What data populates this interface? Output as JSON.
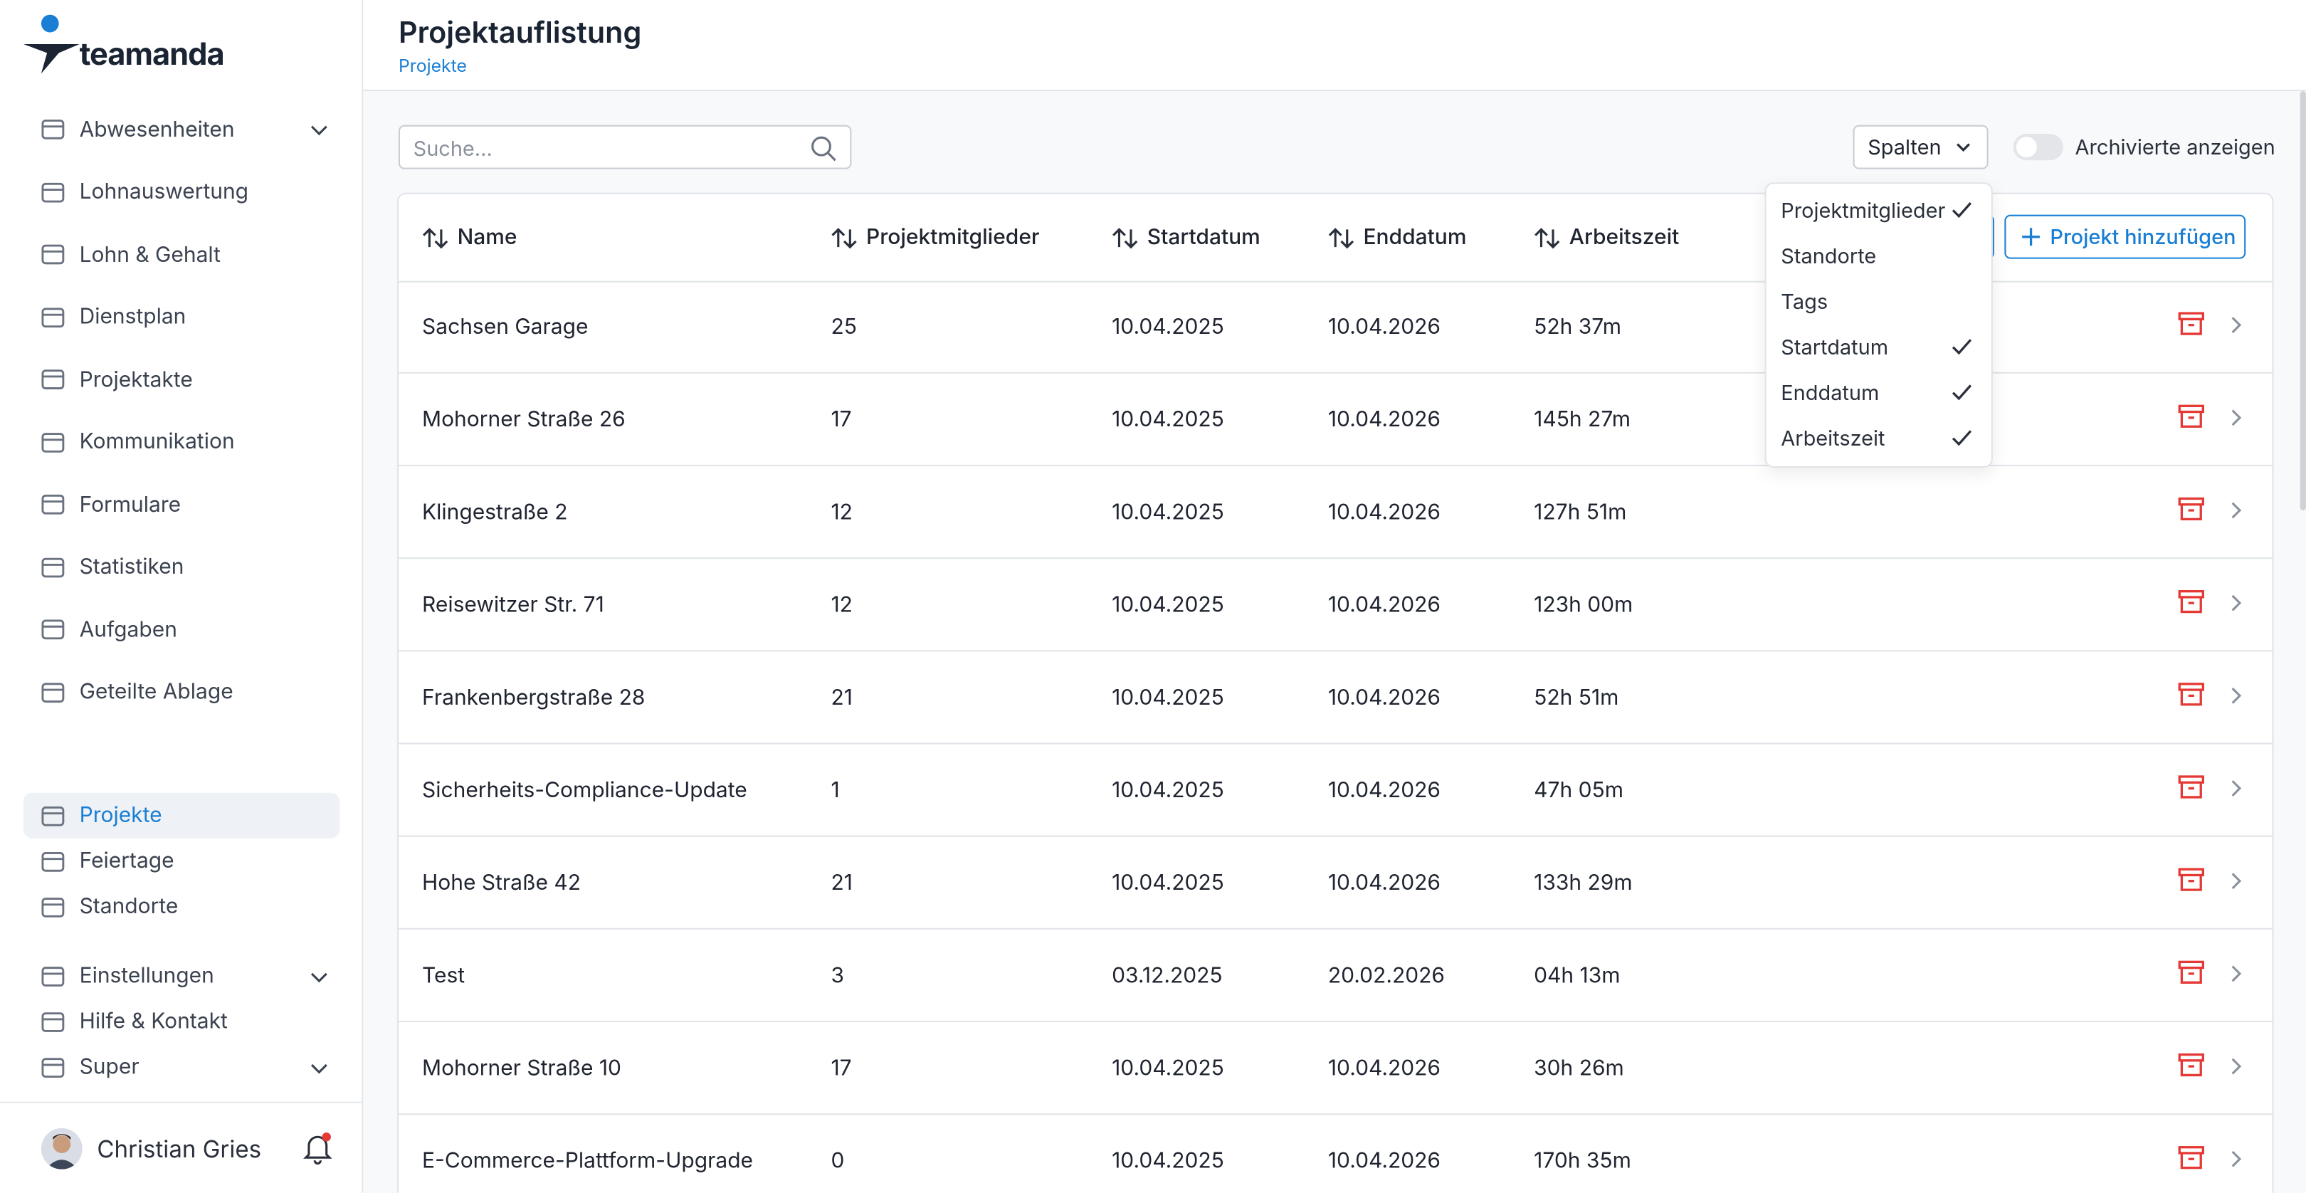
{
  "sidebar": {
    "logo": "teamanda",
    "user": "Christian Gries",
    "nav": [
      {
        "label": "Abwesenheiten",
        "expandable": true
      },
      {
        "label": "Lohnauswertung",
        "expandable": false
      },
      {
        "label": "Lohn & Gehalt",
        "expandable": false
      },
      {
        "label": "Dienstplan",
        "expandable": false
      },
      {
        "label": "Projektakte",
        "expandable": false
      },
      {
        "label": "Kommunikation",
        "expandable": false
      },
      {
        "label": "Formulare",
        "expandable": false
      },
      {
        "label": "Statistiken",
        "expandable": false
      },
      {
        "label": "Aufgaben",
        "expandable": false
      },
      {
        "label": "Geteilte Ablage",
        "expandable": false
      }
    ],
    "bottom_nav": [
      {
        "label": "Projekte",
        "expandable": false,
        "active": true
      },
      {
        "label": "Feiertage",
        "expandable": false,
        "active": false
      },
      {
        "label": "Standorte",
        "expandable": false,
        "active": false
      },
      {
        "label": "Einstellungen",
        "expandable": true,
        "active": false
      },
      {
        "label": "Hilfe & Kontakt",
        "expandable": false,
        "active": false
      },
      {
        "label": "Super",
        "expandable": true,
        "active": false
      }
    ]
  },
  "header": {
    "title": "Projektauflistung",
    "breadcrumb": "Projekte"
  },
  "toolbar": {
    "search_placeholder": "Suche...",
    "columns_button": "Spalten",
    "archived_toggle": "Archivierte anzeigen"
  },
  "column_menu": [
    {
      "label": "Projektmitglieder",
      "checked": true
    },
    {
      "label": "Standorte",
      "checked": false
    },
    {
      "label": "Tags",
      "checked": false
    },
    {
      "label": "Startdatum",
      "checked": true
    },
    {
      "label": "Enddatum",
      "checked": true
    },
    {
      "label": "Arbeitszeit",
      "checked": true
    }
  ],
  "table": {
    "columns": [
      "Name",
      "Projektmitglieder",
      "Startdatum",
      "Enddatum",
      "Arbeitszeit"
    ],
    "add_button": "Projekt hinzufügen",
    "rows": [
      [
        "Sachsen Garage",
        25,
        "10.04.2025",
        "10.04.2026",
        "52h 37m"
      ],
      [
        "Mohorner Straße 26",
        17,
        "10.04.2025",
        "10.04.2026",
        "145h 27m"
      ],
      [
        "Klingestraße 2",
        12,
        "10.04.2025",
        "10.04.2026",
        "127h 51m"
      ],
      [
        "Reisewitzer Str. 71",
        12,
        "10.04.2025",
        "10.04.2026",
        "123h 00m"
      ],
      [
        "Frankenbergstraße 28",
        21,
        "10.04.2025",
        "10.04.2026",
        "52h 51m"
      ],
      [
        "Sicherheits-Compliance-Update",
        1,
        "10.04.2025",
        "10.04.2026",
        "47h 05m"
      ],
      [
        "Hohe Straße 42",
        21,
        "10.04.2025",
        "10.04.2026",
        "133h 29m"
      ],
      [
        "Test",
        3,
        "03.12.2025",
        "20.02.2026",
        "04h 13m"
      ],
      [
        "Mohorner Straße 10",
        17,
        "10.04.2025",
        "10.04.2026",
        "30h 26m"
      ],
      [
        "E-Commerce-Plattform-Upgrade",
        0,
        "10.04.2025",
        "10.04.2026",
        "170h 35m"
      ]
    ]
  }
}
